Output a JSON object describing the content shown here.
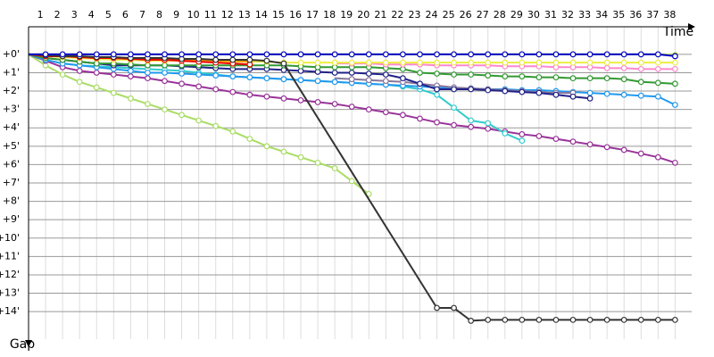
{
  "chart_data": {
    "type": "line",
    "x_label": "Time",
    "y_label": "Gap",
    "xlim": [
      0,
      39.5
    ],
    "ylim": [
      -1.5,
      15.5
    ],
    "y_inverted": true,
    "grid": true,
    "xticks": [
      1,
      2,
      3,
      4,
      5,
      6,
      7,
      8,
      9,
      10,
      11,
      12,
      13,
      14,
      15,
      16,
      17,
      18,
      19,
      20,
      21,
      22,
      23,
      24,
      25,
      26,
      27,
      28,
      29,
      30,
      31,
      32,
      33,
      34,
      35,
      36,
      37,
      38
    ],
    "yticks": [
      {
        "value": 0,
        "label": "+0'"
      },
      {
        "value": 1,
        "label": "+1'"
      },
      {
        "value": 2,
        "label": "+2'"
      },
      {
        "value": 3,
        "label": "+3'"
      },
      {
        "value": 4,
        "label": "+4'"
      },
      {
        "value": 5,
        "label": "+5'"
      },
      {
        "value": 6,
        "label": "+6'"
      },
      {
        "value": 7,
        "label": "+7'"
      },
      {
        "value": 8,
        "label": "+8'"
      },
      {
        "value": 9,
        "label": "+9'"
      },
      {
        "value": 10,
        "label": "+10'"
      },
      {
        "value": 11,
        "label": "+11'"
      },
      {
        "value": 12,
        "label": "+12'"
      },
      {
        "value": 13,
        "label": "+13'"
      },
      {
        "value": 14,
        "label": "+14'"
      }
    ],
    "series": [
      {
        "color": "#ad6",
        "x": [
          0,
          1,
          2,
          3,
          4,
          5,
          6,
          7,
          8,
          9,
          10,
          11,
          12,
          13,
          14,
          15,
          16,
          17,
          18,
          19,
          20
        ],
        "values": [
          0,
          0.6,
          1.1,
          1.5,
          1.8,
          2.1,
          2.4,
          2.7,
          3.0,
          3.3,
          3.6,
          3.9,
          4.2,
          4.6,
          5.0,
          5.3,
          5.6,
          5.9,
          6.2,
          6.9,
          7.6
        ]
      },
      {
        "color": "#939",
        "x": [
          0,
          1,
          2,
          3,
          4,
          5,
          6,
          7,
          8,
          9,
          10,
          11,
          12,
          13,
          14,
          15,
          16,
          17,
          18,
          19,
          20,
          21,
          22,
          23,
          24,
          25,
          26,
          27,
          28,
          29,
          30,
          31,
          32,
          33,
          34,
          35,
          36,
          37,
          38
        ],
        "values": [
          0,
          0.35,
          0.7,
          0.9,
          1.0,
          1.1,
          1.2,
          1.3,
          1.45,
          1.6,
          1.75,
          1.9,
          2.05,
          2.2,
          2.3,
          2.4,
          2.5,
          2.6,
          2.7,
          2.85,
          3.0,
          3.15,
          3.3,
          3.5,
          3.7,
          3.85,
          3.95,
          4.05,
          4.2,
          4.35,
          4.45,
          4.6,
          4.75,
          4.9,
          5.05,
          5.2,
          5.4,
          5.6,
          5.9
        ]
      },
      {
        "color": "#3cc",
        "x": [
          0,
          1,
          2,
          3,
          4,
          5,
          6,
          7,
          8,
          9,
          10,
          11,
          12,
          13,
          14,
          15,
          16,
          17,
          18,
          19,
          20,
          21,
          22,
          23,
          24,
          25,
          26,
          27,
          28,
          29
        ],
        "values": [
          0,
          0.3,
          0.5,
          0.6,
          0.65,
          0.7,
          0.75,
          0.8,
          0.85,
          0.9,
          1.0,
          1.1,
          1.2,
          1.25,
          1.3,
          1.35,
          1.4,
          1.45,
          1.5,
          1.55,
          1.6,
          1.65,
          1.75,
          1.9,
          2.2,
          2.9,
          3.6,
          3.75,
          4.3,
          4.7
        ]
      },
      {
        "color": "#29e",
        "x": [
          0,
          1,
          2,
          3,
          4,
          5,
          6,
          7,
          8,
          9,
          10,
          11,
          12,
          13,
          14,
          15,
          16,
          17,
          18,
          19,
          20,
          21,
          22,
          23,
          24,
          25,
          26,
          27,
          28,
          29,
          30,
          31,
          32,
          33,
          34,
          35,
          36,
          37,
          38
        ],
        "values": [
          0,
          0.3,
          0.5,
          0.6,
          0.7,
          0.8,
          0.9,
          1.0,
          1.0,
          1.05,
          1.1,
          1.15,
          1.2,
          1.25,
          1.3,
          1.35,
          1.4,
          1.45,
          1.5,
          1.55,
          1.6,
          1.65,
          1.7,
          1.75,
          1.8,
          1.85,
          1.85,
          1.9,
          1.9,
          1.95,
          1.95,
          2.0,
          2.05,
          2.1,
          2.15,
          2.2,
          2.25,
          2.3,
          2.75
        ]
      },
      {
        "color": "#879",
        "x": [
          18,
          19,
          20,
          21,
          22,
          23,
          24,
          25,
          26,
          27,
          28,
          29,
          30,
          31,
          32
        ],
        "values": [
          1.3,
          1.35,
          1.4,
          1.45,
          1.5,
          1.6,
          1.7,
          1.8,
          1.85,
          1.9,
          1.95,
          2.0,
          2.05,
          2.1,
          2.1
        ]
      },
      {
        "color": "#228",
        "x": [
          0,
          1,
          2,
          3,
          4,
          5,
          6,
          7,
          8,
          9,
          10,
          11,
          12,
          13,
          14,
          15,
          16,
          17,
          18,
          19,
          20,
          21,
          22,
          23,
          24,
          25,
          26,
          27,
          28,
          29,
          30,
          31,
          32,
          33
        ],
        "values": [
          0,
          0.2,
          0.3,
          0.4,
          0.5,
          0.6,
          0.6,
          0.6,
          0.6,
          0.65,
          0.7,
          0.75,
          0.8,
          0.8,
          0.8,
          0.85,
          0.9,
          0.95,
          1.0,
          1.0,
          1.05,
          1.1,
          1.3,
          1.6,
          1.9,
          1.9,
          1.9,
          1.95,
          2.0,
          2.05,
          2.1,
          2.2,
          2.3,
          2.4
        ]
      },
      {
        "color": "#393",
        "x": [
          0,
          1,
          2,
          3,
          4,
          5,
          6,
          7,
          8,
          9,
          10,
          11,
          12,
          13,
          14,
          15,
          16,
          17,
          18,
          19,
          20,
          21,
          22,
          23,
          24,
          25,
          26,
          27,
          28,
          29,
          30,
          31,
          32,
          33,
          34,
          35,
          36,
          37,
          38
        ],
        "values": [
          0,
          0.2,
          0.3,
          0.4,
          0.5,
          0.5,
          0.55,
          0.6,
          0.6,
          0.6,
          0.6,
          0.6,
          0.6,
          0.6,
          0.6,
          0.6,
          0.65,
          0.7,
          0.7,
          0.7,
          0.7,
          0.75,
          0.8,
          1.0,
          1.05,
          1.1,
          1.1,
          1.15,
          1.2,
          1.2,
          1.25,
          1.25,
          1.3,
          1.3,
          1.3,
          1.35,
          1.5,
          1.55,
          1.6
        ]
      },
      {
        "color": "#f8c",
        "x": [
          18,
          19,
          20,
          21,
          22,
          23,
          24,
          25,
          26,
          27,
          28,
          29,
          30,
          31,
          32,
          33,
          34,
          35,
          36,
          37,
          38
        ],
        "values": [
          0.5,
          0.5,
          0.5,
          0.55,
          0.55,
          0.55,
          0.6,
          0.6,
          0.6,
          0.6,
          0.65,
          0.65,
          0.65,
          0.7,
          0.7,
          0.7,
          0.75,
          0.75,
          0.8,
          0.8,
          0.8
        ]
      },
      {
        "color": "#ee4",
        "x": [
          0,
          1,
          2,
          3,
          4,
          5,
          6,
          7,
          8,
          9,
          10,
          11,
          12,
          13,
          14,
          15,
          16,
          17,
          18,
          19,
          20,
          21,
          22,
          23,
          24,
          25,
          26,
          27,
          28,
          29,
          30,
          31,
          32,
          33,
          34,
          35,
          36,
          37,
          38
        ],
        "values": [
          0,
          0.1,
          0.15,
          0.2,
          0.25,
          0.3,
          0.3,
          0.35,
          0.35,
          0.35,
          0.4,
          0.4,
          0.4,
          0.4,
          0.4,
          0.45,
          0.45,
          0.45,
          0.45,
          0.45,
          0.45,
          0.45,
          0.45,
          0.45,
          0.45,
          0.45,
          0.45,
          0.45,
          0.45,
          0.45,
          0.45,
          0.45,
          0.45,
          0.45,
          0.45,
          0.45,
          0.45,
          0.45,
          0.45
        ]
      },
      {
        "color": "#f90",
        "x": [
          0,
          1,
          2,
          3,
          4,
          5,
          6,
          7,
          8,
          9,
          10,
          11,
          12,
          13
        ],
        "values": [
          0,
          0.05,
          0.1,
          0.15,
          0.2,
          0.2,
          0.25,
          0.25,
          0.3,
          0.3,
          0.3,
          0.35,
          0.35,
          0.4
        ]
      },
      {
        "color": "#e00",
        "x": [
          0,
          1,
          2,
          3,
          4,
          5,
          6,
          7,
          8,
          9,
          10,
          11,
          12,
          13
        ],
        "values": [
          0,
          0.1,
          0.1,
          0.15,
          0.2,
          0.2,
          0.25,
          0.3,
          0.3,
          0.35,
          0.4,
          0.45,
          0.5,
          0.55
        ]
      },
      {
        "color": "#333",
        "x": [
          0,
          1,
          2,
          3,
          4,
          5,
          6,
          7,
          8,
          9,
          10,
          11,
          12,
          13,
          14,
          15,
          24,
          25,
          26,
          27,
          28,
          29,
          30,
          31,
          32,
          33,
          34,
          35,
          36,
          37,
          38
        ],
        "values": [
          0,
          0.05,
          0.1,
          0.1,
          0.15,
          0.15,
          0.2,
          0.2,
          0.2,
          0.25,
          0.25,
          0.3,
          0.3,
          0.3,
          0.35,
          0.5,
          13.8,
          13.8,
          14.5,
          14.45,
          14.45,
          14.45,
          14.45,
          14.45,
          14.45,
          14.45,
          14.45,
          14.45,
          14.45,
          14.45,
          14.45
        ]
      },
      {
        "color": "#9c0",
        "x": [
          0,
          1,
          2,
          3,
          4,
          5,
          6,
          7,
          8,
          9,
          10,
          11,
          12,
          13,
          14,
          15,
          16,
          17,
          18,
          19,
          20,
          21,
          22,
          23,
          24,
          25,
          26,
          27,
          28,
          29,
          30,
          31,
          32,
          33,
          34,
          35,
          36,
          37,
          38
        ],
        "values": [
          0,
          0,
          0,
          0,
          0,
          0,
          0,
          0,
          0,
          0,
          0,
          0,
          0,
          0,
          0,
          0,
          0,
          0,
          0,
          0,
          0,
          0,
          0,
          0,
          0,
          0,
          0,
          0,
          0,
          0,
          0,
          0,
          0,
          0,
          0,
          0,
          0,
          0,
          0.05
        ]
      },
      {
        "color": "#00c",
        "x": [
          0,
          1,
          2,
          3,
          4,
          5,
          6,
          7,
          8,
          9,
          10,
          11,
          12,
          13,
          14,
          15,
          16,
          17,
          18,
          19,
          20,
          21,
          22,
          23,
          24,
          25,
          26,
          27,
          28,
          29,
          30,
          31,
          32,
          33,
          34,
          35,
          36,
          37,
          38
        ],
        "values": [
          0,
          0,
          0,
          0,
          0,
          0,
          0,
          0,
          0,
          0,
          0,
          0,
          0,
          0,
          0,
          0,
          0,
          0,
          0,
          0,
          0,
          0,
          0,
          0,
          0,
          0,
          0,
          0,
          0,
          0,
          0,
          0,
          0,
          0,
          0,
          0,
          0,
          0,
          0.1
        ]
      }
    ]
  }
}
